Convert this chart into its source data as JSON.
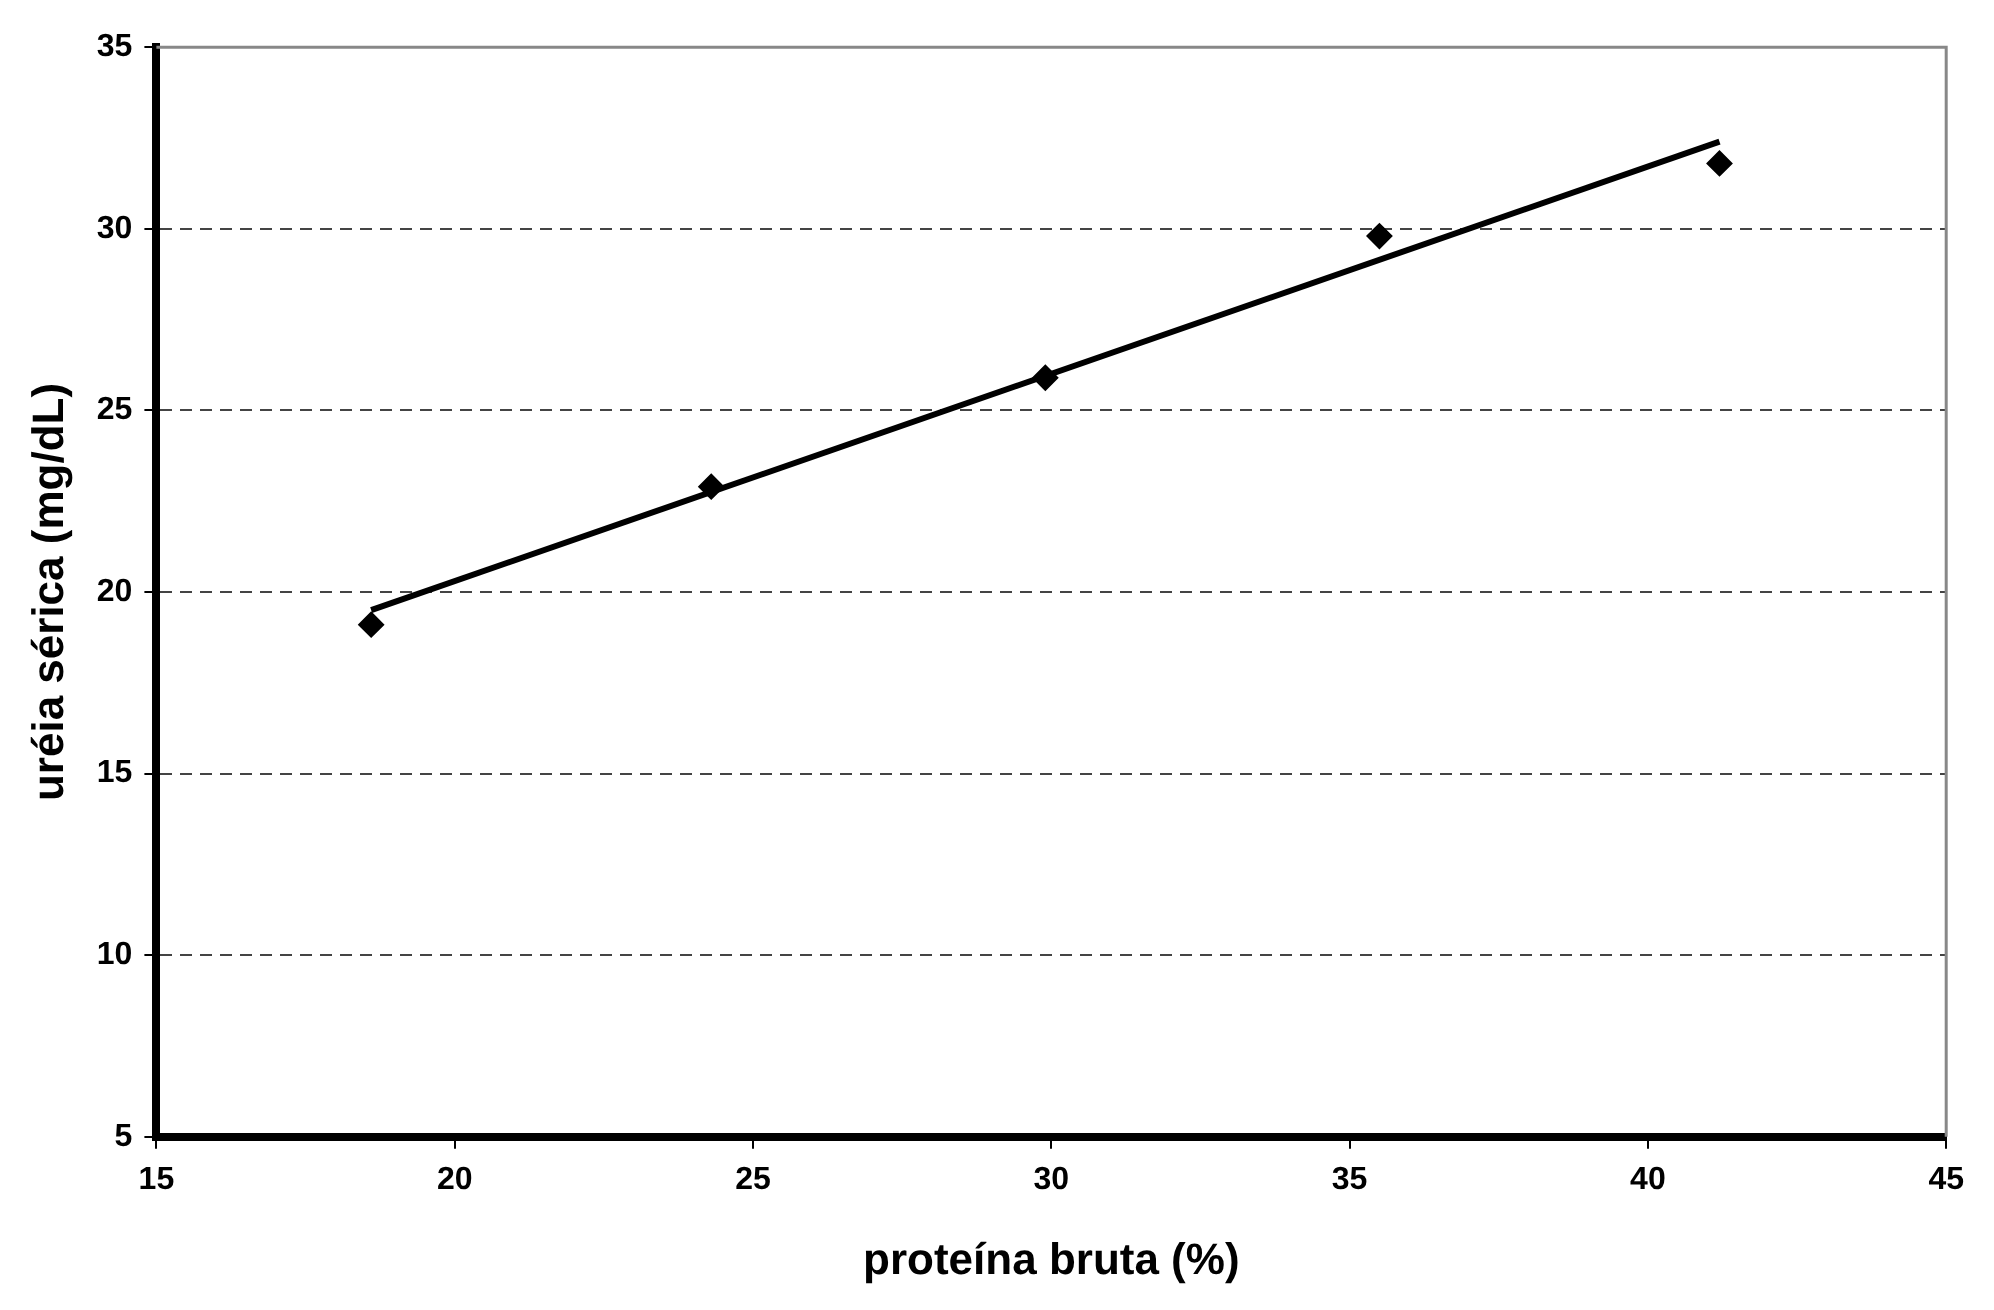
{
  "chart_data": {
    "type": "scatter",
    "xlabel": "proteína bruta (%)",
    "ylabel": "uréia sérica (mg/dL)",
    "xlim": [
      15,
      45
    ],
    "xticks": [
      15,
      20,
      25,
      30,
      35,
      40,
      45
    ],
    "ylim": [
      5,
      35
    ],
    "yticks": [
      5,
      10,
      15,
      20,
      25,
      30,
      35
    ],
    "grid": "y",
    "marker": "diamond",
    "legend": false,
    "series": [
      {
        "color": "#000000",
        "x": [
          18.6,
          24.3,
          29.9,
          35.5,
          41.2
        ],
        "values": [
          19.1,
          22.9,
          25.9,
          29.8,
          31.8
        ]
      },
      {
        "type": "line",
        "color": "#000000",
        "marker": "none",
        "x": [
          18.6,
          41.2
        ],
        "values": [
          19.5,
          32.4
        ]
      }
    ]
  }
}
